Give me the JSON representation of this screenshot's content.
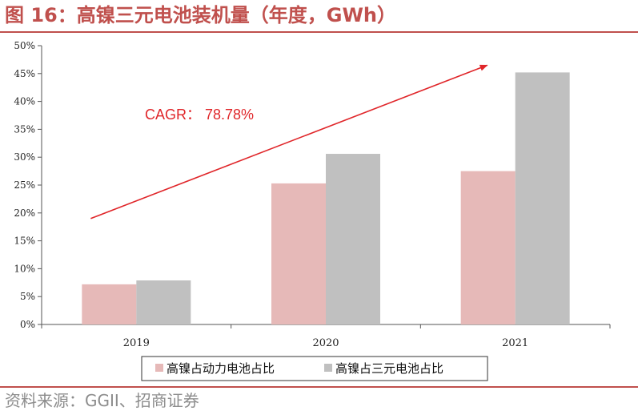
{
  "figure": {
    "title": "图 16：高镍三元电池装机量（年度，GWh）",
    "source": "资料来源：GGII、招商证券"
  },
  "colors": {
    "accent": "#c0504d",
    "series_pink": "#e6b9b8",
    "series_gray": "#c0c0c0",
    "axis": "#555555",
    "source_text": "#8c8c8c"
  },
  "chart_data": {
    "type": "bar",
    "title": "",
    "xlabel": "",
    "ylabel": "",
    "categories": [
      "2019",
      "2020",
      "2021"
    ],
    "series": [
      {
        "name": "高镍占动力电池占比",
        "values": [
          7.2,
          25.3,
          27.5
        ],
        "color": "#e6b9b8"
      },
      {
        "name": "高镍占三元电池占比",
        "values": [
          7.9,
          30.6,
          45.2
        ],
        "color": "#c0c0c0"
      }
    ],
    "ylim": [
      0,
      50
    ],
    "yticks": [
      0,
      5,
      10,
      15,
      20,
      25,
      30,
      35,
      40,
      45,
      50
    ],
    "ytick_labels": [
      "0%",
      "5%",
      "10%",
      "15%",
      "20%",
      "25%",
      "30%",
      "35%",
      "40%",
      "45%",
      "50%"
    ],
    "grid": false,
    "legend": "bottom",
    "annotation": {
      "text": "CAGR： 78.78%",
      "color": "#e0262a",
      "arrow": {
        "from": {
          "category": "2019",
          "value": 19
        },
        "to": {
          "category": "2021",
          "value": 46.5
        }
      }
    }
  }
}
